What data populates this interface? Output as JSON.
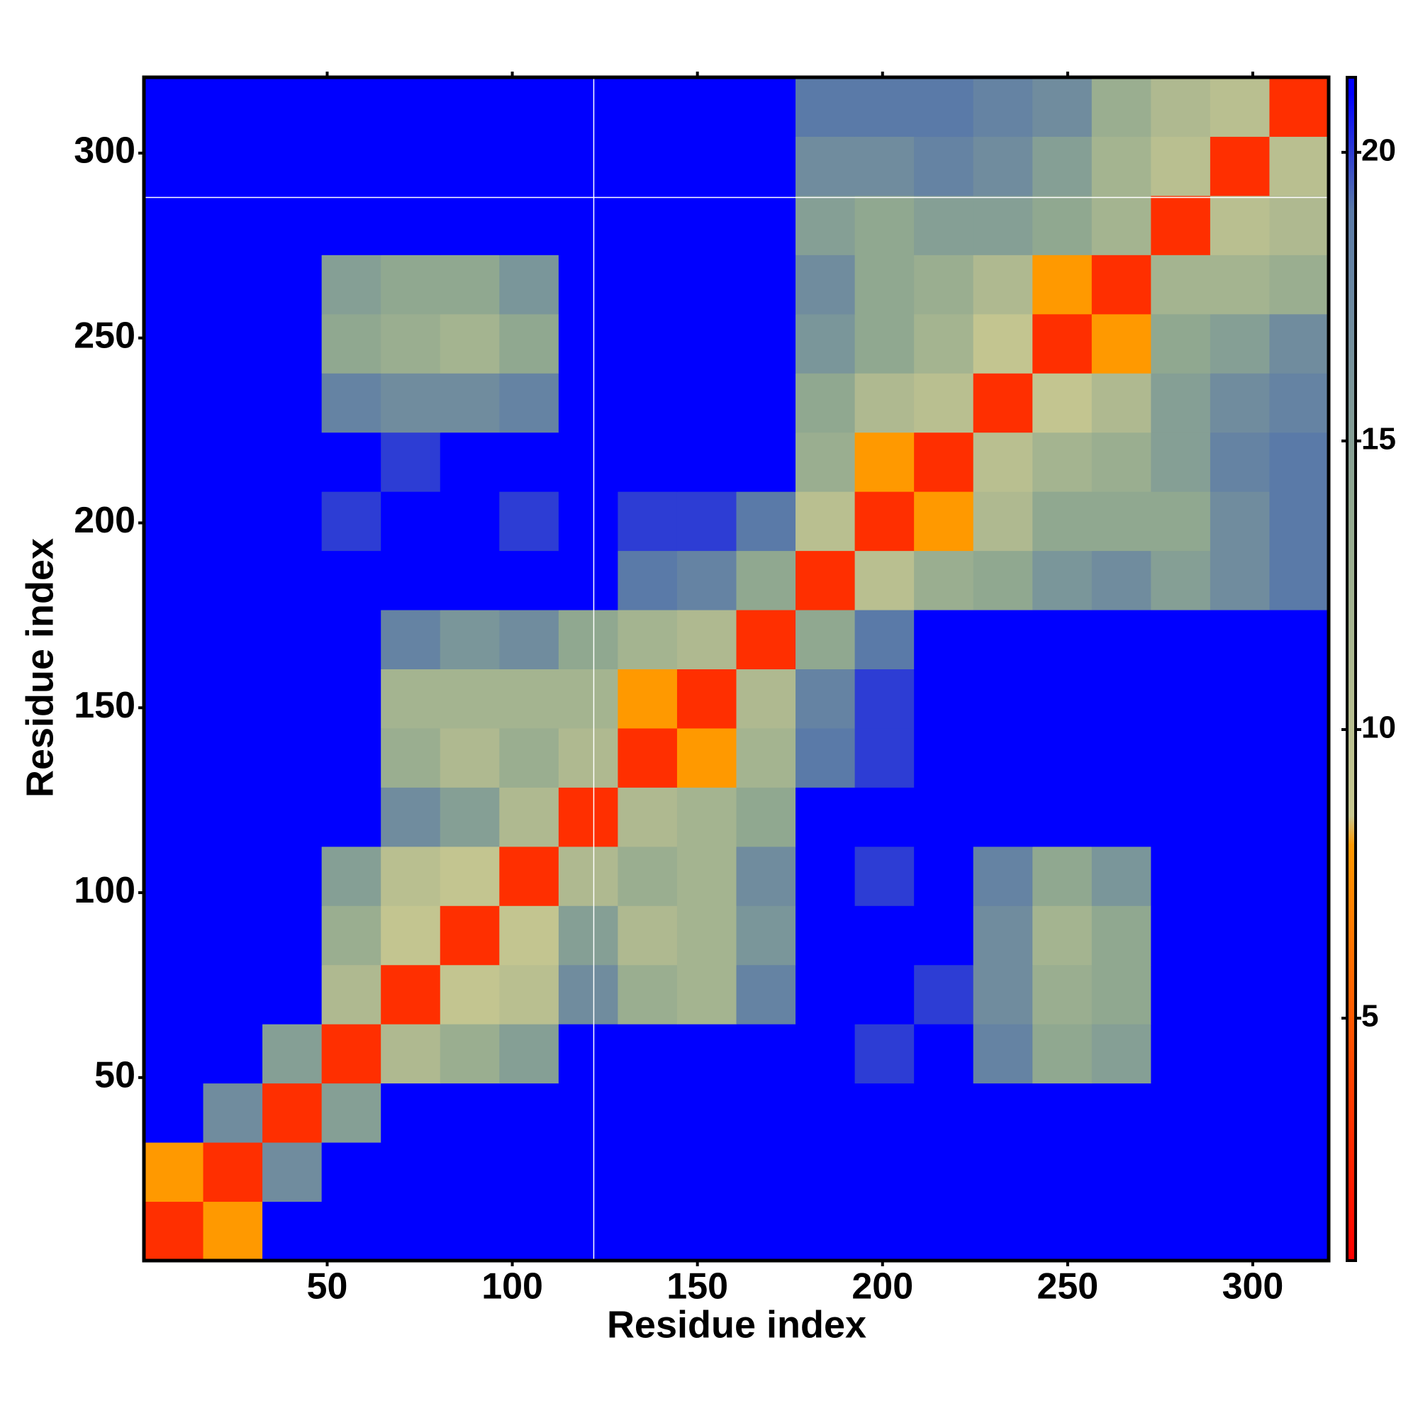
{
  "chart_data": {
    "type": "heatmap",
    "x_label": "Residue index",
    "y_label": "Residue index",
    "xlim": [
      0.5,
      320.5
    ],
    "ylim": [
      0.5,
      320.5
    ],
    "xticks": [
      50,
      100,
      150,
      200,
      250,
      300
    ],
    "yticks": [
      50,
      100,
      150,
      200,
      250,
      300
    ],
    "xbins": [
      0.5,
      16.5,
      32.5,
      48.5,
      64.5,
      80.5,
      96.5,
      112.5,
      128.5,
      144.5,
      160.5,
      176.5,
      192.5,
      208.5,
      224.5,
      240.5,
      256.5,
      272.5,
      288.5,
      304.5,
      320.5
    ],
    "ybins": [
      0.5,
      16.5,
      32.5,
      48.5,
      64.5,
      80.5,
      96.5,
      112.5,
      128.5,
      144.5,
      160.5,
      176.5,
      192.5,
      208.5,
      224.5,
      240.5,
      256.5,
      272.5,
      288.5,
      304.5,
      320.5
    ],
    "z": [
      [
        3,
        8,
        21,
        21,
        21,
        21,
        21,
        21,
        21,
        21,
        21,
        21,
        21,
        21,
        21,
        21,
        21,
        21,
        21,
        21
      ],
      [
        8,
        3,
        17,
        21,
        21,
        21,
        21,
        21,
        21,
        21,
        21,
        21,
        21,
        21,
        21,
        21,
        21,
        21,
        21,
        21
      ],
      [
        21,
        17,
        3,
        15,
        21,
        21,
        21,
        21,
        21,
        21,
        21,
        21,
        21,
        21,
        21,
        21,
        21,
        21,
        21,
        21
      ],
      [
        21,
        21,
        15,
        3,
        11,
        13,
        15,
        21,
        21,
        21,
        21,
        21,
        20,
        21,
        18,
        14,
        15,
        21,
        21,
        21
      ],
      [
        21,
        21,
        21,
        11,
        3,
        9,
        10,
        17,
        13,
        12,
        18,
        21,
        21,
        20,
        17,
        13,
        14,
        21,
        21,
        21
      ],
      [
        21,
        21,
        21,
        13,
        9,
        3,
        9,
        15,
        11,
        12,
        16,
        21,
        21,
        21,
        17,
        12,
        14,
        21,
        21,
        21
      ],
      [
        21,
        21,
        21,
        15,
        10,
        9,
        3,
        11,
        13,
        12,
        17,
        21,
        20,
        21,
        18,
        14,
        16,
        21,
        21,
        21
      ],
      [
        21,
        21,
        21,
        21,
        17,
        15,
        11,
        3,
        11,
        12,
        14,
        21,
        21,
        21,
        21,
        21,
        21,
        21,
        21,
        21
      ],
      [
        21,
        21,
        21,
        21,
        13,
        11,
        13,
        11,
        3,
        8,
        12,
        19,
        20,
        21,
        21,
        21,
        21,
        21,
        21,
        21
      ],
      [
        21,
        21,
        21,
        21,
        12,
        12,
        12,
        12,
        8,
        3,
        11,
        18,
        20,
        21,
        21,
        21,
        21,
        21,
        21,
        21
      ],
      [
        21,
        21,
        21,
        21,
        18,
        16,
        17,
        14,
        12,
        11,
        3,
        14,
        19,
        21,
        21,
        21,
        21,
        21,
        21,
        21
      ],
      [
        21,
        21,
        21,
        21,
        21,
        21,
        21,
        21,
        19,
        18,
        14,
        3,
        10,
        13,
        14,
        16,
        17,
        15,
        17,
        19
      ],
      [
        21,
        21,
        21,
        20,
        21,
        21,
        20,
        21,
        20,
        20,
        19,
        10,
        3,
        8,
        11,
        14,
        14,
        14,
        17,
        19
      ],
      [
        21,
        21,
        21,
        21,
        20,
        21,
        21,
        21,
        21,
        21,
        21,
        13,
        8,
        3,
        10,
        12,
        13,
        15,
        18,
        19
      ],
      [
        21,
        21,
        21,
        18,
        17,
        17,
        18,
        21,
        21,
        21,
        21,
        14,
        11,
        10,
        3,
        9,
        11,
        15,
        17,
        18
      ],
      [
        21,
        21,
        21,
        14,
        13,
        12,
        14,
        21,
        21,
        21,
        21,
        16,
        14,
        12,
        9,
        3,
        8,
        14,
        15,
        17
      ],
      [
        21,
        21,
        21,
        15,
        14,
        14,
        16,
        21,
        21,
        21,
        21,
        17,
        14,
        13,
        11,
        8,
        3,
        12,
        12,
        13
      ],
      [
        21,
        21,
        21,
        21,
        21,
        21,
        21,
        21,
        21,
        21,
        21,
        15,
        14,
        15,
        15,
        14,
        12,
        3,
        10,
        11
      ],
      [
        21,
        21,
        21,
        21,
        21,
        21,
        21,
        21,
        21,
        21,
        21,
        17,
        17,
        18,
        17,
        15,
        12,
        10,
        3,
        10
      ],
      [
        21,
        21,
        21,
        21,
        21,
        21,
        21,
        21,
        21,
        21,
        21,
        19,
        19,
        19,
        18,
        17,
        13,
        11,
        10,
        3
      ]
    ],
    "zlim": [
      0.8,
      21.3
    ],
    "zticks": [
      5,
      10,
      15,
      20
    ],
    "colorscale": [
      [
        0.8,
        "#ff0000"
      ],
      [
        8,
        "#ff9900"
      ],
      [
        8.5,
        "#c8c890"
      ],
      [
        14,
        "#90a890"
      ],
      [
        19,
        "#5a7aa8"
      ],
      [
        21,
        "#0000ff"
      ]
    ],
    "reference_lines": {
      "x": 122,
      "y": 288,
      "color": "#ffffff"
    }
  }
}
